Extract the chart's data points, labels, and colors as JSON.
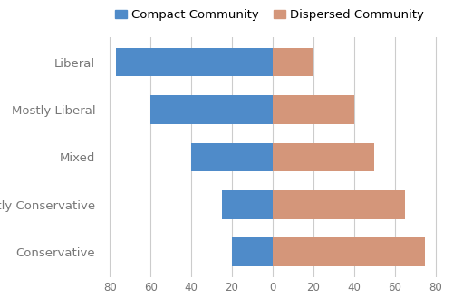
{
  "categories": [
    "Liberal",
    "Mostly Liberal",
    "Mixed",
    "Mostly Conservative",
    "Conservative"
  ],
  "compact": [
    77,
    60,
    40,
    25,
    20
  ],
  "dispersed": [
    20,
    40,
    50,
    65,
    75
  ],
  "compact_color": "#4f8bc9",
  "dispersed_color": "#d4967a",
  "xlim": [
    -85,
    82
  ],
  "xticks": [
    -80,
    -60,
    -40,
    -20,
    0,
    20,
    40,
    60,
    80
  ],
  "xticklabels": [
    "80",
    "60",
    "40",
    "20",
    "0",
    "20",
    "40",
    "60",
    "80"
  ],
  "legend_compact": "Compact Community",
  "legend_dispersed": "Dispersed Community",
  "bar_height": 0.6,
  "grid_color": "#cccccc",
  "background_color": "#ffffff",
  "label_fontsize": 9.5,
  "tick_fontsize": 8.5,
  "legend_fontsize": 9.5,
  "ylabel_color": "#777777",
  "tick_color": "#777777"
}
